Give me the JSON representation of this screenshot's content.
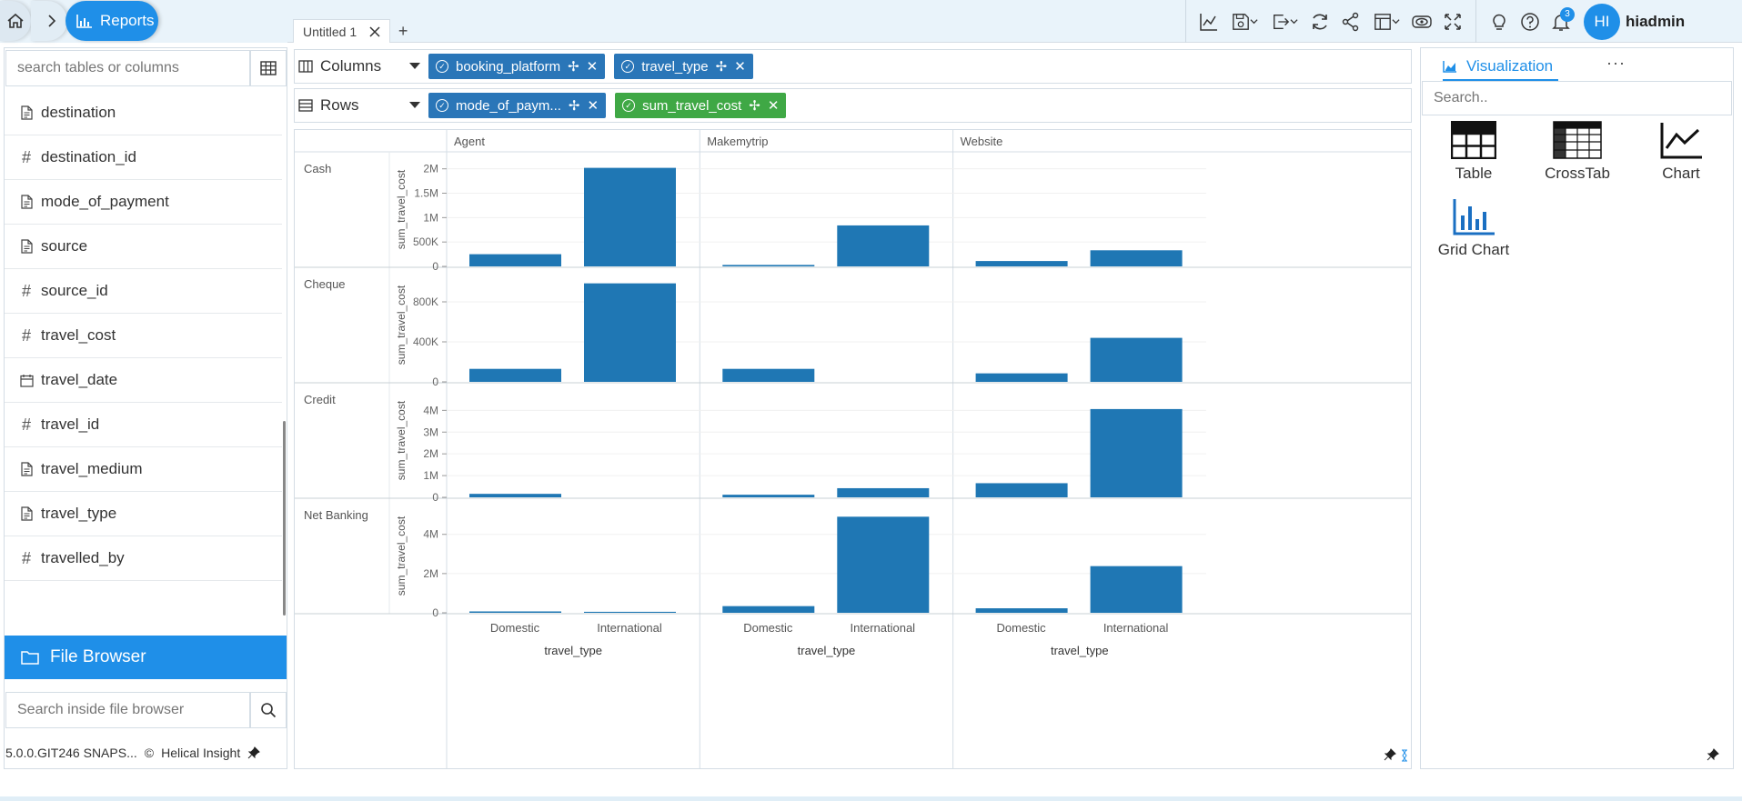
{
  "header": {
    "breadcrumb_label": "Reports",
    "tab_title": "Untitled 1",
    "notification_count": "3",
    "user_initials": "HI",
    "user_name": "hiadmin"
  },
  "left_panel": {
    "search_placeholder": "search tables or columns",
    "fields": [
      {
        "name": "destination",
        "icon": "document-icon"
      },
      {
        "name": "destination_id",
        "icon": "hash-icon"
      },
      {
        "name": "mode_of_payment",
        "icon": "document-icon"
      },
      {
        "name": "source",
        "icon": "document-icon"
      },
      {
        "name": "source_id",
        "icon": "hash-icon"
      },
      {
        "name": "travel_cost",
        "icon": "hash-icon"
      },
      {
        "name": "travel_date",
        "icon": "calendar-icon"
      },
      {
        "name": "travel_id",
        "icon": "hash-icon"
      },
      {
        "name": "travel_medium",
        "icon": "document-icon"
      },
      {
        "name": "travel_type",
        "icon": "document-icon"
      },
      {
        "name": "travelled_by",
        "icon": "hash-icon"
      }
    ],
    "file_browser_label": "File Browser",
    "file_browser_search_placeholder": "Search inside file browser",
    "version": "5.0.0.GIT246 SNAPS...",
    "copyright": "Helical Insight"
  },
  "shelves": {
    "columns_label": "Columns",
    "rows_label": "Rows",
    "column_pills": [
      "booking_platform",
      "travel_type"
    ],
    "row_pills": [
      {
        "label": "mode_of_paym...",
        "color": "blue"
      },
      {
        "label": "sum_travel_cost",
        "color": "green"
      }
    ]
  },
  "visualization": {
    "tab_label": "Visualization",
    "search_placeholder": "Search..",
    "types": [
      "Table",
      "CrossTab",
      "Chart",
      "Grid Chart"
    ]
  },
  "chart_data": {
    "type": "bar",
    "bar_color": "#1f77b4",
    "column_facets": [
      "Agent",
      "Makemytrip",
      "Website"
    ],
    "row_facets": [
      "Cash",
      "Cheque",
      "Credit",
      "Net Banking"
    ],
    "categories": [
      "Domestic",
      "International"
    ],
    "xlabel": "travel_type",
    "ylabel": "sum_travel_cost",
    "panels": [
      {
        "row": "Cash",
        "yticks": [
          0,
          500000,
          1000000,
          1500000,
          2000000
        ],
        "tick_labels": [
          "0",
          "500K",
          "1M",
          "1.5M",
          "2M"
        ],
        "ymax": 2050000,
        "values": [
          [
            250000,
            2020000
          ],
          [
            30000,
            840000
          ],
          [
            110000,
            330000
          ]
        ]
      },
      {
        "row": "Cheque",
        "yticks": [
          0,
          400000,
          800000
        ],
        "tick_labels": [
          "0",
          "400K",
          "800K"
        ],
        "ymax": 1000000,
        "values": [
          [
            130000,
            985000
          ],
          [
            130000,
            0
          ],
          [
            85000,
            440000
          ]
        ]
      },
      {
        "row": "Credit",
        "yticks": [
          0,
          1000000,
          2000000,
          3000000,
          4000000
        ],
        "tick_labels": [
          "0",
          "1M",
          "2M",
          "3M",
          "4M"
        ],
        "ymax": 4600000,
        "values": [
          [
            160000,
            0
          ],
          [
            120000,
            420000
          ],
          [
            650000,
            4060000
          ]
        ]
      },
      {
        "row": "Net Banking",
        "yticks": [
          0,
          2000000,
          4000000
        ],
        "tick_labels": [
          "0",
          "2M",
          "4M"
        ],
        "ymax": 5100000,
        "values": [
          [
            70000,
            50000
          ],
          [
            340000,
            4900000
          ],
          [
            230000,
            2380000
          ]
        ]
      }
    ]
  }
}
